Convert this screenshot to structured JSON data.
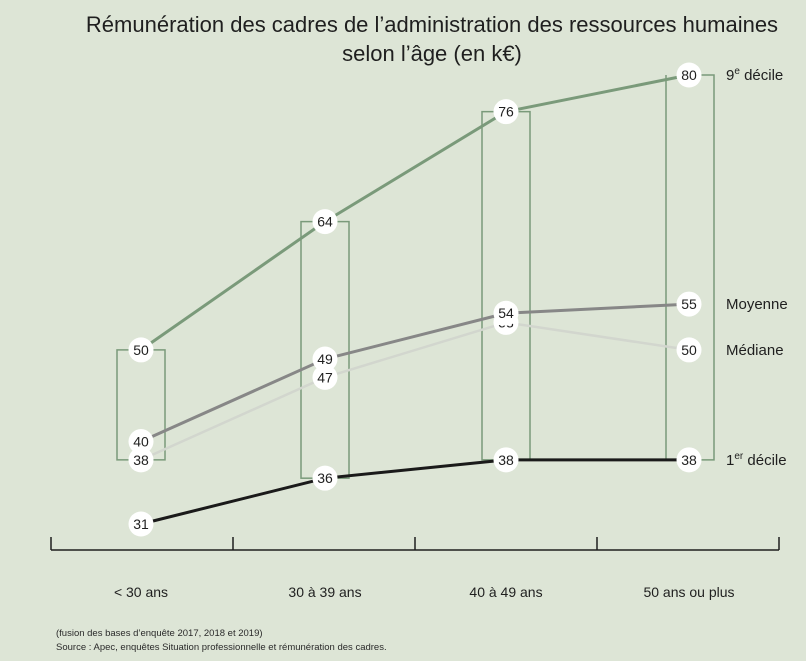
{
  "chart_data": {
    "type": "line",
    "title": "Rémunération des cadres de l’administration des ressources humaines",
    "subtitle": "selon l’âge (en k€)",
    "categories": [
      "< 30 ans",
      "30 à 39 ans",
      "40 à 49 ans",
      "50 ans ou plus"
    ],
    "ylim": [
      25,
      85
    ],
    "grid": false,
    "series": [
      {
        "key": "d9",
        "name": "9",
        "sup": "e",
        "suffix": " décile",
        "values": [
          50,
          64,
          76,
          80
        ],
        "color": "#7a9a7a"
      },
      {
        "key": "moy",
        "name": "Moyenne",
        "values": [
          40,
          49,
          54,
          55
        ],
        "color": "#878787"
      },
      {
        "key": "med",
        "name": "Médiane",
        "values": [
          38,
          47,
          53,
          50
        ],
        "color": "#d2d6ce"
      },
      {
        "key": "d1",
        "name": "1",
        "sup": "er",
        "suffix": " décile",
        "values": [
          31,
          36,
          38,
          38
        ],
        "color": "#1a1a1a"
      }
    ],
    "box_color": "#7a9a7a"
  },
  "footnote": "(fusion des bases d’enquête 2017, 2018 et 2019)",
  "source": "Source : Apec, enquêtes Situation professionnelle et rémunération des cadres."
}
